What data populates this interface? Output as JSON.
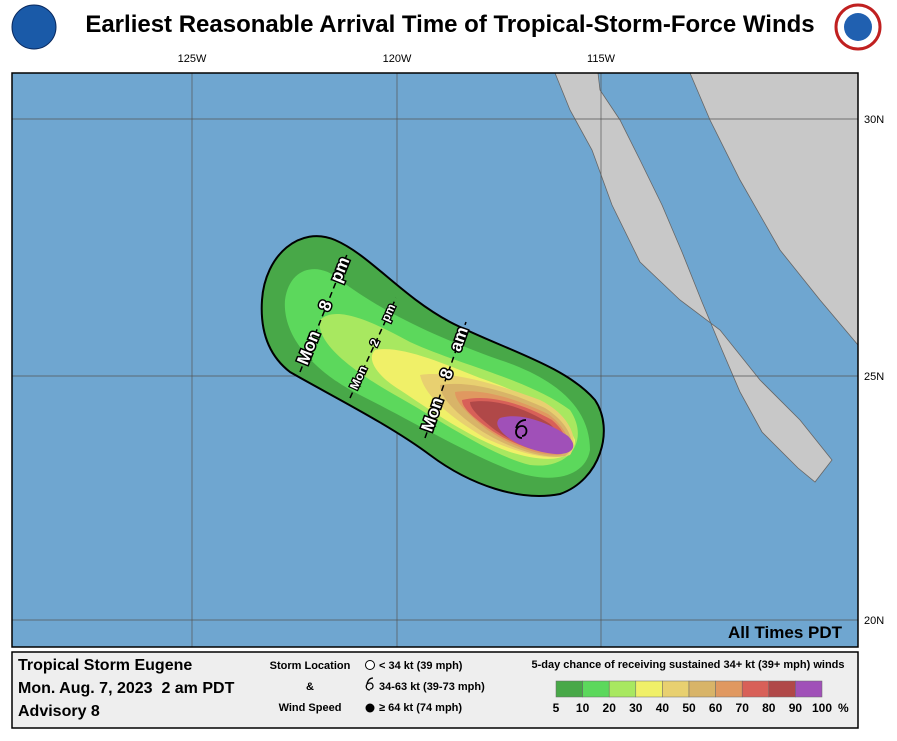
{
  "header": {
    "title": "Earliest Reasonable Arrival Time of Tropical-Storm-Force Winds"
  },
  "map": {
    "lon_labels": [
      "125W",
      "120W",
      "115W"
    ],
    "lat_labels": [
      "30N",
      "25N",
      "20N"
    ],
    "time_labels": [
      [
        "Mon",
        "8",
        "pm"
      ],
      [
        "Mon",
        "2",
        "pm"
      ],
      [
        "Mon",
        "8",
        "am"
      ]
    ],
    "note": "All Times PDT"
  },
  "footer": {
    "storm": "Tropical Storm Eugene",
    "date": "Mon. Aug. 7, 2023  2 am PDT",
    "advisory": "Advisory 8",
    "key_title": [
      "Storm Location",
      "&",
      "Wind Speed"
    ],
    "key_items": [
      "< 34 kt (39 mph)",
      "34-63 kt (39-73 mph)",
      "≥ 64 kt (74 mph)"
    ],
    "scale_title": "5-day chance of receiving sustained 34+ kt (39+ mph) winds",
    "scale_labels": [
      "5",
      "10",
      "20",
      "30",
      "40",
      "50",
      "60",
      "70",
      "80",
      "90",
      "100"
    ],
    "scale_unit": "%",
    "scale_colors": [
      "#48a848",
      "#5cd85c",
      "#a8e860",
      "#f0f068",
      "#e8d070",
      "#d8b468",
      "#e09860",
      "#d86058",
      "#b04848",
      "#a050b8"
    ]
  }
}
